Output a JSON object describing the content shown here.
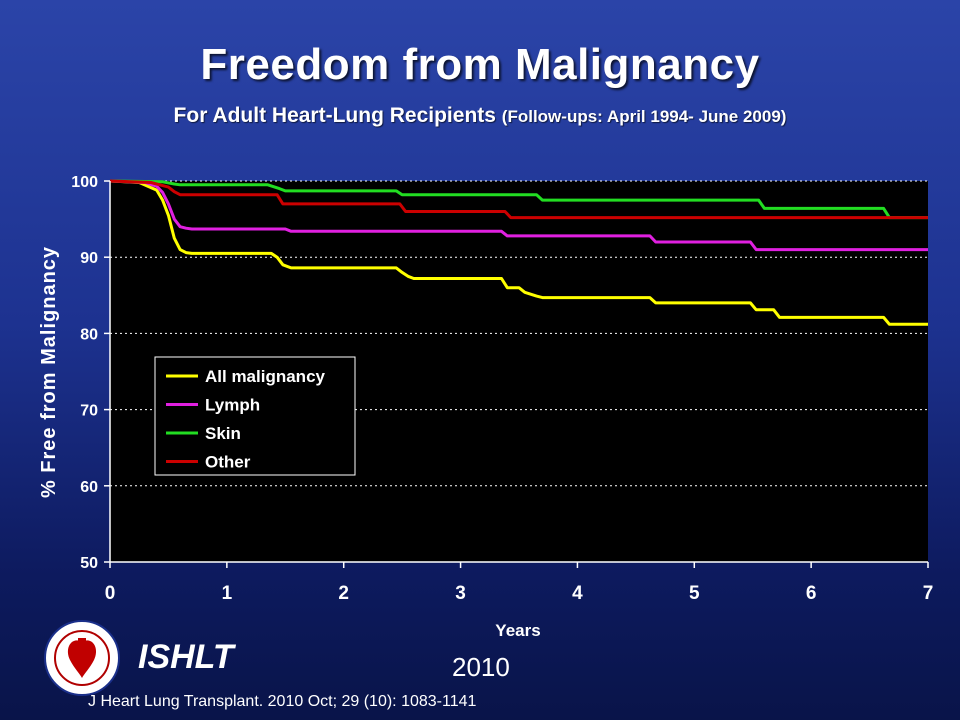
{
  "header": {
    "title": "Freedom from Malignancy",
    "subtitle_main": "For Adult Heart-Lung Recipients",
    "subtitle_note": "(Follow-ups: April 1994- June 2009)"
  },
  "footer": {
    "org": "ISHLT",
    "year": "2010",
    "citation": "J Heart Lung Transplant. 2010 Oct; 29 (10): 1083-1141",
    "logo_icon": "ishlt-seal-icon"
  },
  "chart_data": {
    "type": "line",
    "xlabel": "Years",
    "ylabel": "% Free from Malignancy",
    "xlim": [
      0,
      7
    ],
    "ylim": [
      50,
      100
    ],
    "x_ticks": [
      "0",
      "1",
      "2",
      "3",
      "4",
      "5",
      "6",
      "7"
    ],
    "y_ticks": [
      "100",
      "90",
      "80",
      "70",
      "60",
      "50"
    ],
    "grid": "horizontal dotted",
    "legend_position": "center-left",
    "background": "#000000",
    "series": [
      {
        "name": "All malignancy",
        "color": "#ffff00",
        "step": false,
        "x": [
          0,
          0.25,
          0.4,
          0.45,
          0.5,
          0.55,
          0.6,
          0.65,
          0.7,
          1.38,
          1.43,
          1.48,
          1.55,
          2.45,
          2.5,
          2.55,
          2.6,
          3.35,
          3.4,
          3.5,
          3.55,
          3.65,
          3.7,
          4.62,
          4.67,
          5.48,
          5.53,
          5.68,
          5.73,
          6.62,
          6.67,
          7.0
        ],
        "y": [
          100,
          99.8,
          98.8,
          97.5,
          95.5,
          92.5,
          91.0,
          90.6,
          90.5,
          90.5,
          90.0,
          89.0,
          88.6,
          88.6,
          88.0,
          87.5,
          87.2,
          87.2,
          86.0,
          86.0,
          85.4,
          84.9,
          84.7,
          84.7,
          84.0,
          84.0,
          83.1,
          83.1,
          82.1,
          82.1,
          81.2,
          81.2
        ]
      },
      {
        "name": "Lymph",
        "color": "#e020e0",
        "step": false,
        "x": [
          0,
          0.3,
          0.4,
          0.45,
          0.5,
          0.55,
          0.6,
          0.65,
          0.7,
          1.5,
          1.55,
          3.35,
          3.4,
          4.62,
          4.67,
          5.48,
          5.53,
          7.0
        ],
        "y": [
          100,
          99.8,
          99.3,
          98.5,
          97.0,
          95.0,
          94.0,
          93.8,
          93.7,
          93.7,
          93.4,
          93.4,
          92.8,
          92.8,
          92.0,
          92.0,
          91.0,
          91.0
        ]
      },
      {
        "name": "Skin",
        "color": "#22dd22",
        "step": false,
        "x": [
          0,
          0.45,
          0.55,
          0.6,
          1.35,
          1.45,
          1.5,
          2.45,
          2.5,
          3.65,
          3.7,
          5.55,
          5.6,
          6.62,
          6.67,
          7.0
        ],
        "y": [
          100,
          99.9,
          99.6,
          99.5,
          99.5,
          99.0,
          98.7,
          98.7,
          98.2,
          98.2,
          97.5,
          97.5,
          96.4,
          96.4,
          95.2,
          95.2
        ]
      },
      {
        "name": "Other",
        "color": "#cc0000",
        "step": false,
        "x": [
          0,
          0.35,
          0.5,
          0.55,
          0.6,
          1.43,
          1.48,
          2.48,
          2.53,
          3.38,
          3.43,
          7.0
        ],
        "y": [
          100,
          99.8,
          99.2,
          98.6,
          98.2,
          98.2,
          97.0,
          97.0,
          96.0,
          96.0,
          95.2,
          95.2
        ]
      }
    ]
  }
}
